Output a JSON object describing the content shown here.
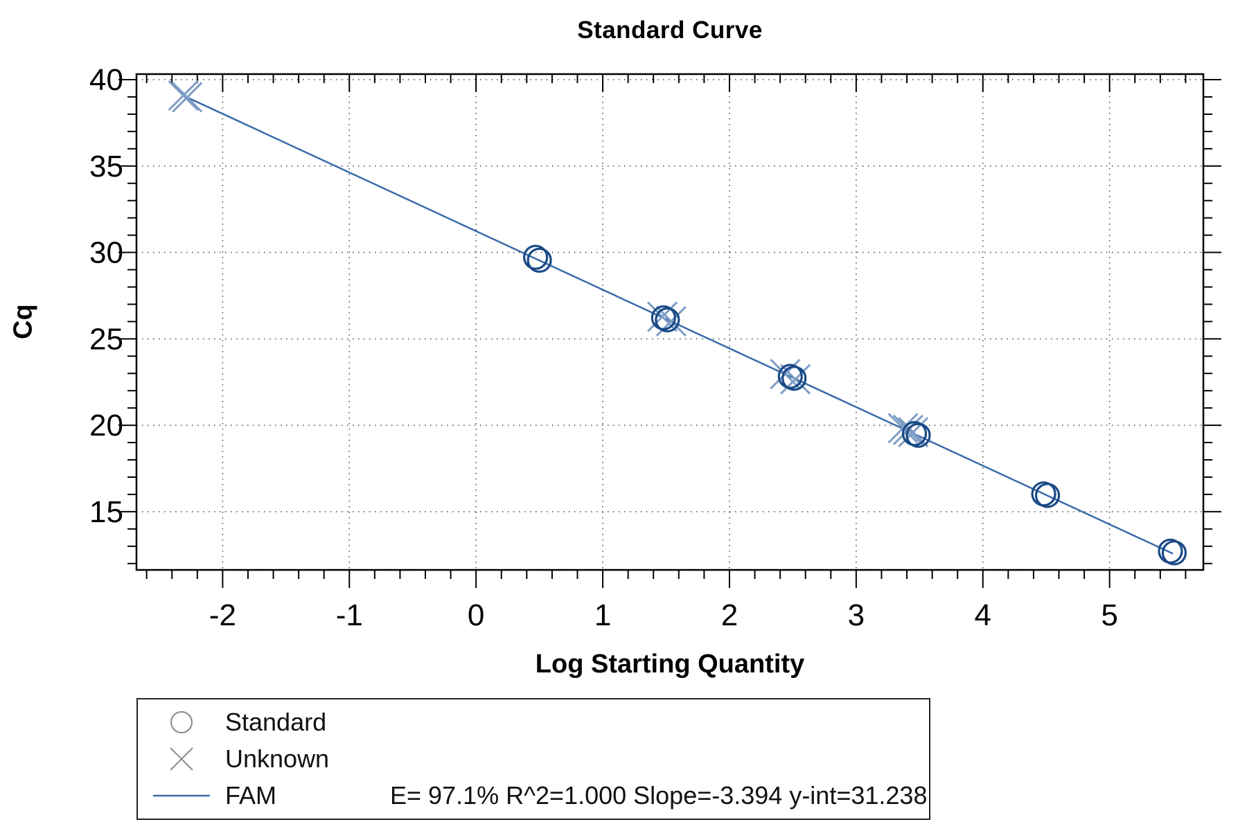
{
  "chart": {
    "title": "Standard Curve",
    "x_label": "Log Starting Quantity",
    "y_label": "Cq"
  },
  "chart_data": {
    "type": "scatter",
    "title": "Standard Curve",
    "xlabel": "Log Starting Quantity",
    "ylabel": "Cq",
    "xlim": [
      -2.68,
      5.74
    ],
    "ylim": [
      11.63,
      40.32
    ],
    "x_major_ticks": [
      -2,
      -1,
      0,
      1,
      2,
      3,
      4,
      5
    ],
    "x_minor_step": 0.2,
    "y_major_ticks": [
      15,
      20,
      25,
      30,
      35,
      40
    ],
    "y_minor_step": 1,
    "grid": "dotted",
    "legend_position": "bottom-left",
    "series": [
      {
        "name": "Standard",
        "marker": "circle",
        "points": [
          [
            0.47,
            29.72
          ],
          [
            0.5,
            29.55
          ],
          [
            1.48,
            26.22
          ],
          [
            1.51,
            26.1
          ],
          [
            2.48,
            22.83
          ],
          [
            2.51,
            22.72
          ],
          [
            3.46,
            19.52
          ],
          [
            3.49,
            19.42
          ],
          [
            4.48,
            16.03
          ],
          [
            4.51,
            15.94
          ],
          [
            5.48,
            12.72
          ],
          [
            5.51,
            12.62
          ]
        ]
      },
      {
        "name": "Unknown",
        "marker": "x",
        "points": [
          [
            -2.31,
            39.08
          ],
          [
            -2.28,
            38.98
          ],
          [
            1.47,
            26.28
          ],
          [
            1.54,
            26.02
          ],
          [
            2.44,
            22.96
          ],
          [
            2.52,
            22.66
          ],
          [
            3.37,
            19.83
          ],
          [
            3.41,
            19.73
          ],
          [
            3.45,
            19.6
          ]
        ]
      },
      {
        "name": "FAM",
        "marker": "line",
        "trendline": {
          "from": [
            -2.3,
            39.04
          ],
          "to": [
            5.5,
            12.57
          ]
        },
        "efficiency": "97.1%",
        "r_squared": "1.000",
        "slope": "-3.394",
        "y_intercept": "31.238"
      }
    ]
  },
  "legend": {
    "items": [
      {
        "label": "Standard",
        "marker": "circle"
      },
      {
        "label": "Unknown",
        "marker": "x"
      },
      {
        "label": "FAM",
        "marker": "line",
        "stats": "E= 97.1% R^2=1.000 Slope=-3.394 y-int=31.238"
      }
    ]
  },
  "colors": {
    "standard_marker": "#1a4a86",
    "unknown_marker": "#7e9cc5",
    "trend_line": "#3a6ba8",
    "legend_marker": "#8a8a8a",
    "grid": "#404040",
    "axis": "#000000"
  }
}
